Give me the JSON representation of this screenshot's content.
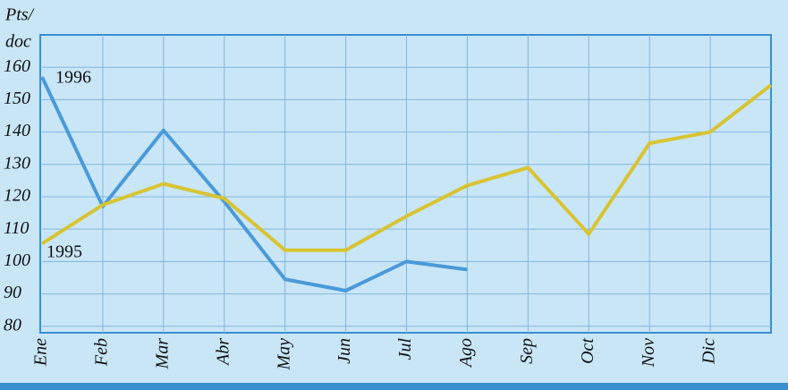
{
  "chart_data": {
    "type": "line",
    "y_label_lines": [
      "Pts/",
      "doc"
    ],
    "categories": [
      "Ene",
      "Feb",
      "Mar",
      "Abr",
      "May",
      "Jun",
      "Jul",
      "Ago",
      "Sep",
      "Oct",
      "Nov",
      "Dic",
      null
    ],
    "series": [
      {
        "name": "1996",
        "color": "#4a9ad8",
        "values": [
          157,
          117,
          140.5,
          118.5,
          94.5,
          91,
          100,
          97.5,
          null,
          null,
          null,
          null,
          null
        ]
      },
      {
        "name": "1995",
        "color": "#d8c432",
        "values": [
          105.5,
          117.5,
          124,
          119.5,
          103.5,
          103.5,
          114,
          123.5,
          129,
          108.5,
          136.5,
          140,
          154.5
        ]
      }
    ],
    "ylim": [
      78,
      170
    ],
    "yticks": [
      80,
      90,
      100,
      110,
      120,
      130,
      140,
      150,
      160
    ],
    "grid": true
  }
}
